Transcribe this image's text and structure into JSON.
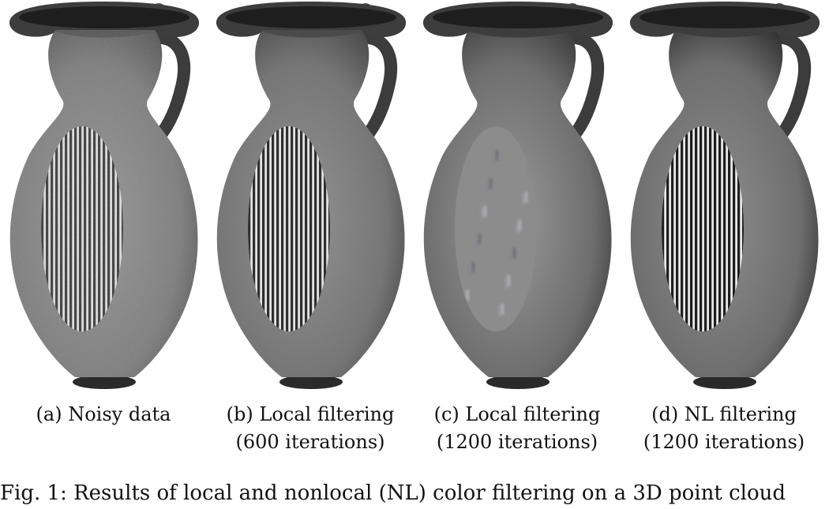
{
  "panels": [
    {
      "label": "(a) Noisy data",
      "sublabel": "",
      "variant": "noisy"
    },
    {
      "label": "(b) Local filtering",
      "sublabel": "(600 iterations)",
      "variant": "mild"
    },
    {
      "label": "(c) Local filtering",
      "sublabel": "(1200 iterations)",
      "variant": "blurred"
    },
    {
      "label": "(d) NL filtering",
      "sublabel": "(1200 iterations)",
      "variant": "clean"
    }
  ],
  "figure_caption": "Fig. 1: Results of local and nonlocal (NL) color filtering on a 3D point cloud",
  "colors": {
    "background": "#ffffff",
    "jug_gray": "#8a8a8a",
    "stripe_dark": "#1e1e1e",
    "stripe_light": "#e8e8e8"
  }
}
